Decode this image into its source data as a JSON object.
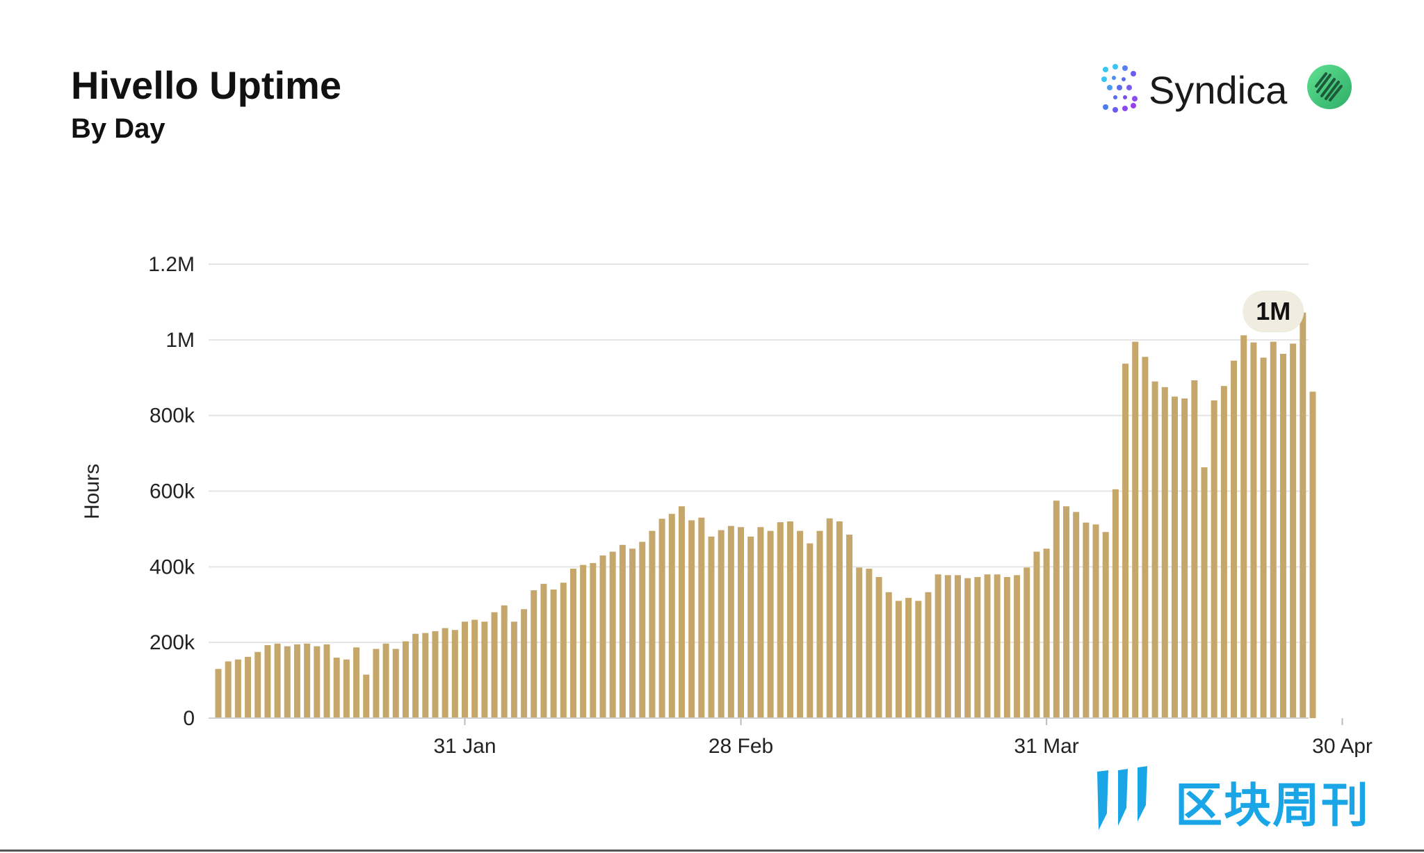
{
  "header": {
    "title": "Hivello Uptime",
    "subtitle": "By Day"
  },
  "brand": {
    "syndica_label": "Syndica",
    "syndica_icon": "syndica-dots-icon",
    "hivello_icon": "hivello-logo-icon",
    "hivello_color": "#3fc47a"
  },
  "watermark": {
    "text": "区块周刊",
    "color": "#1aa6e6"
  },
  "chart_data": {
    "type": "bar",
    "ylabel": "Hours",
    "xlabel": "",
    "ylim": [
      0,
      1200000
    ],
    "y_ticks": [
      {
        "value": 0,
        "label": "0"
      },
      {
        "value": 200000,
        "label": "200k"
      },
      {
        "value": 400000,
        "label": "400k"
      },
      {
        "value": 600000,
        "label": "600k"
      },
      {
        "value": 800000,
        "label": "800k"
      },
      {
        "value": 1000000,
        "label": "1M"
      },
      {
        "value": 1200000,
        "label": "1.2M"
      }
    ],
    "x_ticks": [
      {
        "date": "31 Jan",
        "index": 25
      },
      {
        "date": "28 Feb",
        "index": 53
      },
      {
        "date": "31 Mar",
        "index": 84
      },
      {
        "date": "30 Apr",
        "index": 114
      }
    ],
    "grid": true,
    "bar_color": "#c6a76b",
    "annotation": {
      "label": "1M",
      "index": 107
    },
    "x_range": "~6 Jan – 1 May (one bar per day)",
    "values": [
      130000,
      150000,
      155000,
      162000,
      175000,
      193000,
      197000,
      190000,
      195000,
      197000,
      190000,
      195000,
      160000,
      155000,
      187000,
      115000,
      183000,
      197000,
      183000,
      203000,
      223000,
      225000,
      230000,
      238000,
      233000,
      255000,
      260000,
      255000,
      280000,
      298000,
      255000,
      288000,
      338000,
      355000,
      340000,
      358000,
      395000,
      405000,
      410000,
      430000,
      440000,
      458000,
      448000,
      466000,
      495000,
      527000,
      540000,
      560000,
      523000,
      530000,
      480000,
      497000,
      508000,
      505000,
      480000,
      505000,
      495000,
      518000,
      520000,
      495000,
      462000,
      495000,
      528000,
      520000,
      485000,
      398000,
      395000,
      373000,
      333000,
      310000,
      318000,
      310000,
      333000,
      380000,
      378000,
      378000,
      370000,
      373000,
      380000,
      380000,
      373000,
      378000,
      398000,
      440000,
      448000,
      575000,
      560000,
      545000,
      517000,
      512000,
      492000,
      605000,
      937000,
      995000,
      955000,
      890000,
      875000,
      850000,
      845000,
      893000,
      663000,
      840000,
      878000,
      945000,
      1012000,
      993000,
      953000,
      995000,
      963000,
      990000,
      1072000,
      863000
    ]
  }
}
